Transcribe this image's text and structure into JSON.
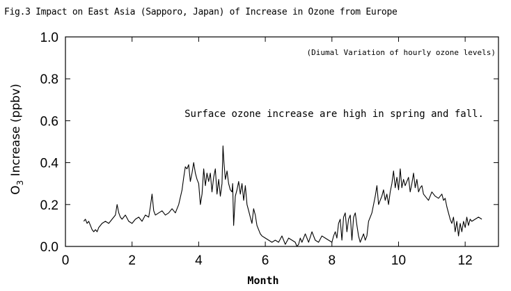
{
  "figure": {
    "caption": "Fig.3 Impact on East Asia (Sapporo, Japan) of Increase in Ozone from Europe"
  },
  "chart_data": {
    "type": "line",
    "title": "Fig.3 Impact on East Asia (Sapporo, Japan) of Increase in Ozone from Europe",
    "xlabel": "Month",
    "ylabel_main": "O",
    "ylabel_sub": "3",
    "ylabel_rest": " Increase (ppbv)",
    "xlim": [
      0,
      13
    ],
    "ylim": [
      0.0,
      1.0
    ],
    "xticks": [
      0,
      2,
      4,
      6,
      8,
      10,
      12
    ],
    "xtick_labels": [
      "0",
      "2",
      "4",
      "6",
      "8",
      "10",
      "12"
    ],
    "yticks": [
      0.0,
      0.2,
      0.4,
      0.6,
      0.8,
      1.0
    ],
    "ytick_labels": [
      "0.0",
      "0.2",
      "0.4",
      "0.6",
      "0.8",
      "1.0"
    ],
    "grid": false,
    "annotations": [
      "(Diumal Variation of hourly ozone levels)",
      "Surface ozone increase are high in spring and fall."
    ],
    "series": [
      {
        "color": "#000000",
        "x": [
          0.55,
          0.6,
          0.65,
          0.7,
          0.75,
          0.8,
          0.85,
          0.9,
          0.95,
          1.0,
          1.1,
          1.2,
          1.3,
          1.4,
          1.5,
          1.55,
          1.6,
          1.65,
          1.7,
          1.8,
          1.9,
          2.0,
          2.1,
          2.2,
          2.3,
          2.4,
          2.5,
          2.55,
          2.6,
          2.65,
          2.7,
          2.8,
          2.9,
          3.0,
          3.1,
          3.2,
          3.3,
          3.4,
          3.5,
          3.55,
          3.6,
          3.65,
          3.7,
          3.75,
          3.8,
          3.85,
          3.9,
          3.95,
          4.0,
          4.05,
          4.1,
          4.15,
          4.2,
          4.25,
          4.3,
          4.35,
          4.4,
          4.45,
          4.5,
          4.55,
          4.6,
          4.65,
          4.7,
          4.73,
          4.76,
          4.8,
          4.85,
          4.9,
          4.95,
          5.0,
          5.02,
          5.05,
          5.1,
          5.15,
          5.2,
          5.25,
          5.3,
          5.35,
          5.4,
          5.45,
          5.5,
          5.55,
          5.6,
          5.65,
          5.7,
          5.75,
          5.8,
          5.85,
          5.9,
          6.0,
          6.1,
          6.2,
          6.3,
          6.4,
          6.5,
          6.6,
          6.7,
          6.8,
          6.9,
          6.95,
          7.0,
          7.05,
          7.1,
          7.2,
          7.3,
          7.4,
          7.5,
          7.6,
          7.7,
          7.8,
          7.9,
          8.0,
          8.05,
          8.1,
          8.15,
          8.2,
          8.25,
          8.3,
          8.35,
          8.4,
          8.45,
          8.5,
          8.55,
          8.6,
          8.65,
          8.7,
          8.75,
          8.8,
          8.85,
          8.9,
          8.95,
          9.0,
          9.05,
          9.1,
          9.15,
          9.2,
          9.25,
          9.3,
          9.35,
          9.4,
          9.45,
          9.5,
          9.55,
          9.6,
          9.65,
          9.7,
          9.75,
          9.8,
          9.85,
          9.9,
          9.95,
          10.0,
          10.05,
          10.1,
          10.15,
          10.2,
          10.25,
          10.3,
          10.35,
          10.4,
          10.45,
          10.5,
          10.55,
          10.6,
          10.65,
          10.7,
          10.75,
          10.8,
          10.9,
          11.0,
          11.1,
          11.2,
          11.3,
          11.35,
          11.4,
          11.45,
          11.5,
          11.55,
          11.6,
          11.65,
          11.7,
          11.75,
          11.8,
          11.85,
          11.9,
          11.95,
          12.0,
          12.05,
          12.1,
          12.15,
          12.2,
          12.3,
          12.4,
          12.5
        ],
        "y": [
          0.12,
          0.13,
          0.11,
          0.12,
          0.1,
          0.08,
          0.07,
          0.08,
          0.07,
          0.09,
          0.11,
          0.12,
          0.11,
          0.13,
          0.15,
          0.2,
          0.16,
          0.14,
          0.13,
          0.15,
          0.12,
          0.11,
          0.13,
          0.14,
          0.12,
          0.15,
          0.14,
          0.19,
          0.25,
          0.17,
          0.15,
          0.16,
          0.17,
          0.15,
          0.16,
          0.18,
          0.16,
          0.2,
          0.27,
          0.33,
          0.38,
          0.37,
          0.39,
          0.31,
          0.35,
          0.4,
          0.35,
          0.32,
          0.3,
          0.2,
          0.25,
          0.37,
          0.29,
          0.35,
          0.31,
          0.35,
          0.26,
          0.33,
          0.37,
          0.25,
          0.32,
          0.24,
          0.3,
          0.48,
          0.4,
          0.32,
          0.36,
          0.3,
          0.27,
          0.26,
          0.3,
          0.1,
          0.24,
          0.27,
          0.31,
          0.25,
          0.3,
          0.22,
          0.29,
          0.2,
          0.17,
          0.14,
          0.11,
          0.18,
          0.15,
          0.1,
          0.08,
          0.06,
          0.05,
          0.04,
          0.03,
          0.02,
          0.03,
          0.02,
          0.05,
          0.01,
          0.04,
          0.03,
          0.02,
          0.0,
          0.01,
          0.04,
          0.02,
          0.06,
          0.02,
          0.07,
          0.03,
          0.02,
          0.05,
          0.04,
          0.03,
          0.02,
          0.05,
          0.07,
          0.04,
          0.11,
          0.13,
          0.03,
          0.14,
          0.16,
          0.07,
          0.13,
          0.15,
          0.03,
          0.14,
          0.16,
          0.1,
          0.05,
          0.02,
          0.04,
          0.06,
          0.03,
          0.05,
          0.12,
          0.14,
          0.16,
          0.2,
          0.24,
          0.29,
          0.2,
          0.22,
          0.24,
          0.27,
          0.22,
          0.25,
          0.2,
          0.26,
          0.3,
          0.36,
          0.28,
          0.33,
          0.27,
          0.37,
          0.28,
          0.32,
          0.29,
          0.31,
          0.33,
          0.26,
          0.3,
          0.35,
          0.28,
          0.32,
          0.26,
          0.28,
          0.29,
          0.25,
          0.24,
          0.22,
          0.26,
          0.24,
          0.23,
          0.25,
          0.22,
          0.23,
          0.19,
          0.16,
          0.13,
          0.11,
          0.14,
          0.07,
          0.12,
          0.05,
          0.11,
          0.07,
          0.12,
          0.09,
          0.14,
          0.1,
          0.13,
          0.12,
          0.13,
          0.14,
          0.13
        ]
      }
    ]
  }
}
